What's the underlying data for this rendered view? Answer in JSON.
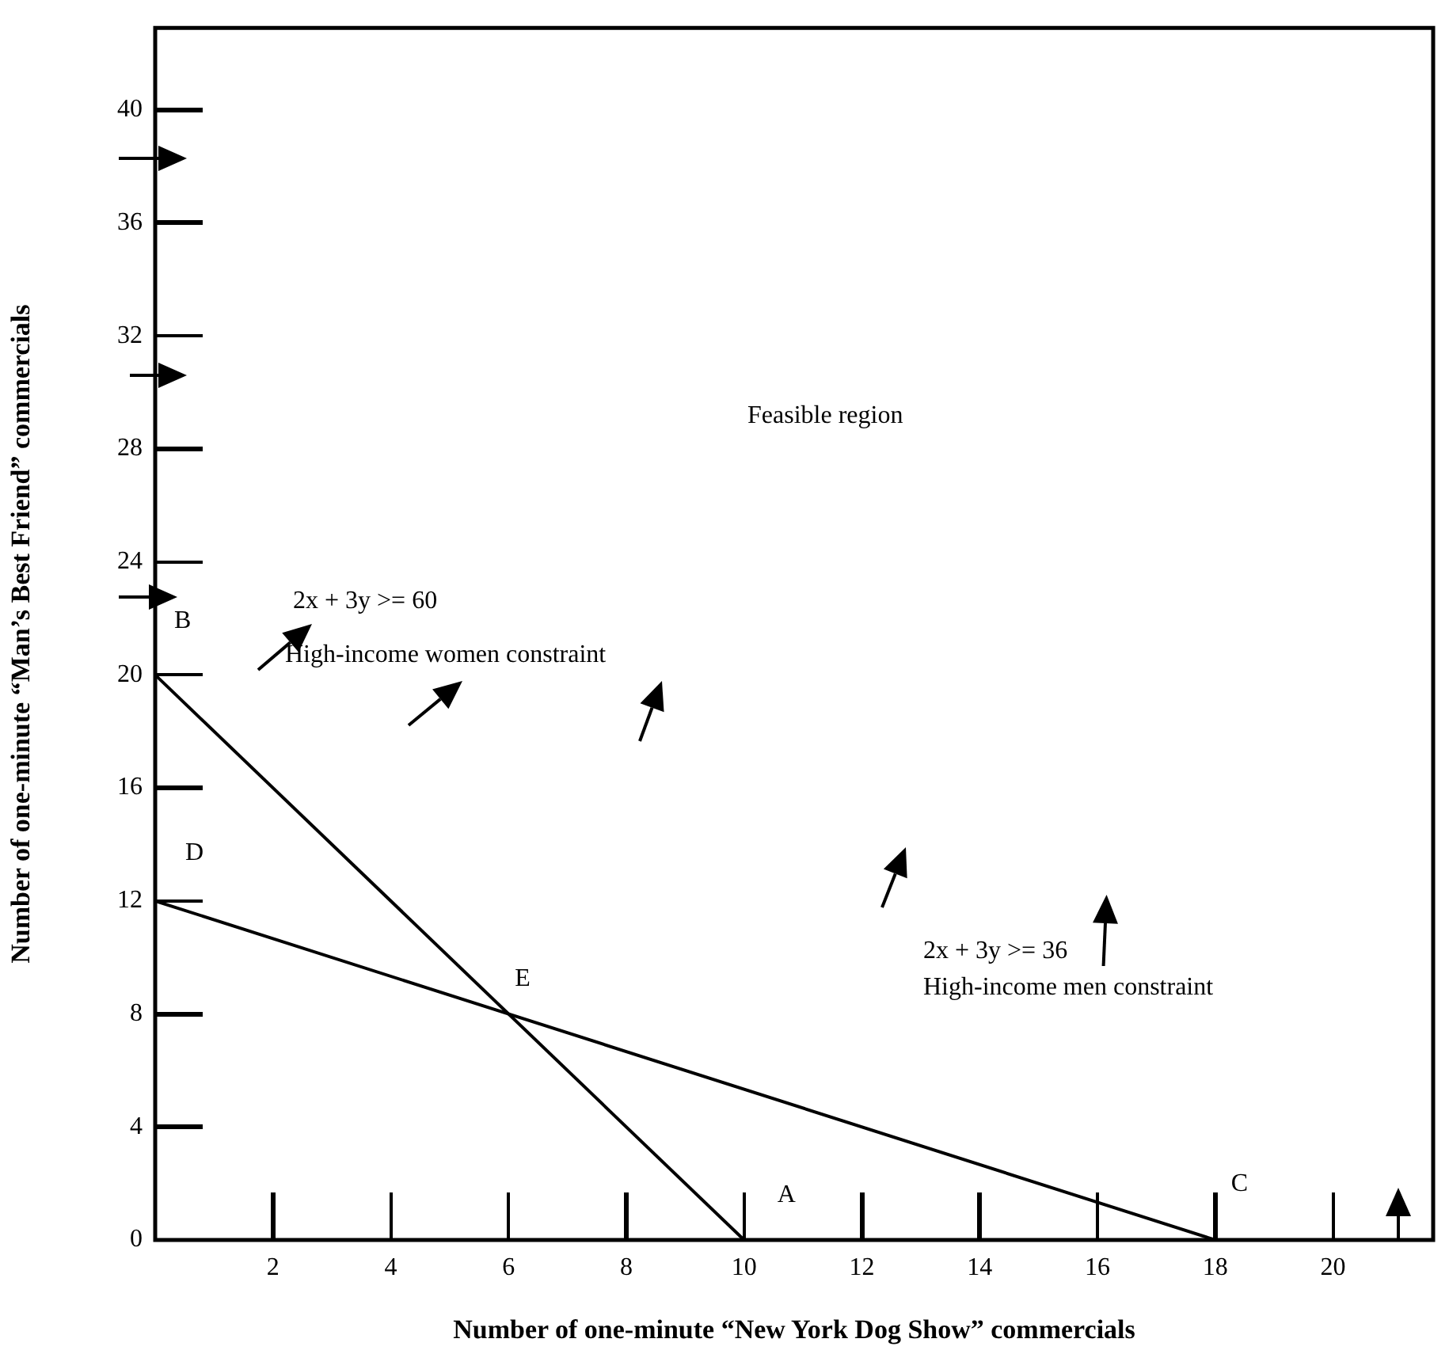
{
  "chart_data": {
    "type": "line",
    "xlabel": "Number of one-minute “New York Dog Show” commercials",
    "ylabel": "Number of one-minute “Man’s Best Friend” commercials",
    "xlim": [
      0,
      21.7
    ],
    "ylim": [
      0,
      42.9
    ],
    "xticks": [
      2,
      4,
      6,
      8,
      10,
      12,
      14,
      16,
      18,
      20
    ],
    "yticks": [
      0,
      4,
      8,
      12,
      16,
      20,
      24,
      28,
      32,
      36,
      40
    ],
    "grid": false,
    "legend": false,
    "marker": "none",
    "line_style": "solid",
    "series": [
      {
        "color": "#000000",
        "x": [
          0,
          10
        ],
        "values": [
          20,
          0
        ]
      },
      {
        "color": "#000000",
        "x": [
          0,
          18
        ],
        "values": [
          12,
          0
        ]
      }
    ],
    "annotations": [
      "Feasible region",
      "2x + 3y >= 60",
      "High-income women constraint",
      {
        "text": "B",
        "x": 0,
        "y": 20
      },
      {
        "text": "D",
        "x": 0,
        "y": 12
      },
      {
        "text": "E",
        "x": 6,
        "y": 8
      },
      {
        "text": "A",
        "x": 10,
        "y": 0
      },
      {
        "text": "C",
        "x": 18,
        "y": 0
      },
      "2x + 3y >= 36",
      "High-income men constraint"
    ]
  }
}
